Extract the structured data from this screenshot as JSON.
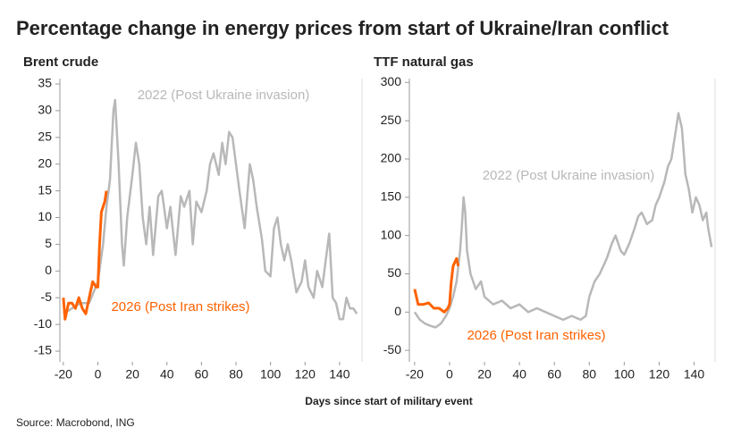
{
  "title": "Percentage change in energy prices from start of Ukraine/Iran conflict",
  "xlabel": "Days since start of military event",
  "source": "Source: Macrobond, ING",
  "chart_data": [
    {
      "type": "line",
      "title": "Brent crude",
      "xlim": [
        -22,
        153
      ],
      "xticks": [
        -20,
        0,
        20,
        40,
        60,
        80,
        100,
        120,
        140
      ],
      "ylim": [
        -17,
        36
      ],
      "yticks": [
        35,
        30,
        25,
        20,
        15,
        10,
        5,
        0,
        -5,
        -10,
        -15
      ],
      "series": [
        {
          "name": "2022 (Post Ukraine invasion)",
          "color": "#b8b8b8",
          "x": [
            -20,
            -15,
            -10,
            -5,
            0,
            3,
            5,
            7,
            9,
            10,
            12,
            14,
            15,
            17,
            20,
            22,
            24,
            26,
            28,
            30,
            32,
            35,
            37,
            40,
            42,
            45,
            48,
            50,
            53,
            55,
            57,
            60,
            63,
            65,
            67,
            70,
            72,
            74,
            76,
            78,
            80,
            82,
            85,
            88,
            90,
            92,
            95,
            97,
            100,
            102,
            104,
            106,
            108,
            110,
            112,
            115,
            118,
            120,
            122,
            125,
            127,
            130,
            132,
            134,
            136,
            138,
            140,
            142,
            144,
            146,
            148,
            150
          ],
          "values": [
            -8,
            -7,
            -6,
            -6,
            -2,
            5,
            12,
            17,
            30,
            32,
            20,
            5,
            1,
            10,
            18,
            24,
            20,
            10,
            5,
            12,
            3,
            14,
            15,
            8,
            12,
            3,
            14,
            12,
            15,
            5,
            13,
            11,
            15,
            20,
            22,
            18,
            24,
            20,
            26,
            25,
            20,
            15,
            8,
            20,
            17,
            12,
            6,
            0,
            -1,
            8,
            10,
            5,
            2,
            5,
            2,
            -4,
            -2,
            2,
            -3,
            -5,
            0,
            -3,
            2,
            7,
            -5,
            -6,
            -9,
            -9,
            -5,
            -7,
            -7,
            -8
          ]
        },
        {
          "name": "2026 (Post Iran strikes)",
          "color": "#ff6200",
          "x": [
            -20,
            -19,
            -17,
            -15,
            -13,
            -11,
            -9,
            -7,
            -5,
            -3,
            -1,
            0,
            1,
            2,
            3,
            4,
            5
          ],
          "values": [
            -5,
            -9,
            -6,
            -6,
            -7,
            -5,
            -7,
            -8,
            -5,
            -2,
            -3,
            -3,
            5,
            11,
            12,
            13,
            15
          ]
        }
      ]
    },
    {
      "type": "line",
      "title": "TTF natural gas",
      "xlim": [
        -23,
        152
      ],
      "xticks": [
        -20,
        0,
        20,
        40,
        60,
        80,
        100,
        120,
        140
      ],
      "ylim": [
        -65,
        305
      ],
      "yticks": [
        300,
        250,
        200,
        150,
        100,
        50,
        0,
        -50
      ],
      "series": [
        {
          "name": "2022 (Post Ukraine invasion)",
          "color": "#b8b8b8",
          "x": [
            -20,
            -17,
            -14,
            -11,
            -8,
            -5,
            -2,
            0,
            2,
            4,
            6,
            7,
            8,
            9,
            10,
            12,
            15,
            18,
            20,
            25,
            30,
            35,
            40,
            45,
            50,
            55,
            60,
            65,
            70,
            75,
            78,
            80,
            83,
            86,
            90,
            93,
            95,
            98,
            100,
            103,
            106,
            108,
            110,
            113,
            116,
            118,
            120,
            123,
            125,
            127,
            129,
            131,
            133,
            135,
            137,
            139,
            141,
            143,
            145,
            147,
            148,
            150
          ],
          "values": [
            0,
            -10,
            -15,
            -18,
            -20,
            -15,
            -5,
            5,
            20,
            40,
            80,
            110,
            150,
            130,
            80,
            50,
            30,
            40,
            20,
            10,
            15,
            5,
            10,
            0,
            5,
            0,
            -5,
            -10,
            -5,
            -10,
            -5,
            20,
            40,
            50,
            70,
            90,
            100,
            80,
            75,
            90,
            110,
            125,
            130,
            115,
            120,
            140,
            150,
            170,
            190,
            200,
            230,
            260,
            240,
            180,
            160,
            130,
            150,
            140,
            120,
            130,
            110,
            85
          ]
        },
        {
          "name": "2026 (Post Iran strikes)",
          "color": "#ff6200",
          "x": [
            -20,
            -18,
            -15,
            -12,
            -9,
            -6,
            -3,
            -1,
            0,
            1,
            2,
            3,
            4,
            5
          ],
          "values": [
            30,
            10,
            10,
            12,
            5,
            5,
            0,
            5,
            10,
            40,
            60,
            65,
            70,
            60
          ]
        }
      ]
    }
  ]
}
